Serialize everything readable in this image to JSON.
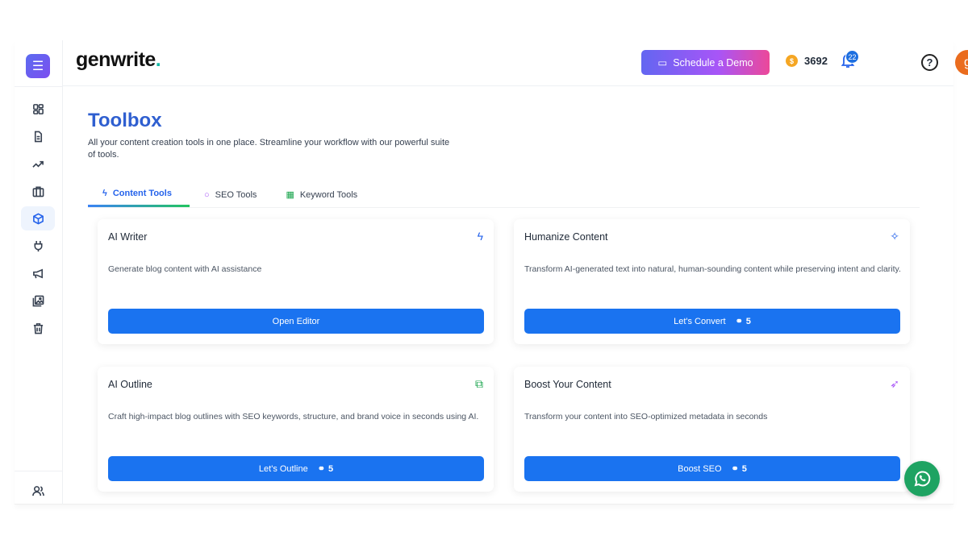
{
  "sidebar": {
    "items": [
      {
        "icon": "dashboard-icon"
      },
      {
        "icon": "document-icon"
      },
      {
        "icon": "trending-icon"
      },
      {
        "icon": "briefcase-icon"
      },
      {
        "icon": "box-icon",
        "active": true
      },
      {
        "icon": "plug-icon"
      },
      {
        "icon": "megaphone-icon"
      },
      {
        "icon": "image-icon"
      },
      {
        "icon": "trash-icon"
      }
    ],
    "bottom_icon": "users-icon"
  },
  "header": {
    "logo": "genwrite",
    "logo_dot": ".",
    "demo_label": "Schedule a Demo",
    "credits": "3692",
    "notifications": "22",
    "avatar_letter": "g"
  },
  "page": {
    "title": "Toolbox",
    "subtitle": "All your content creation tools in one place. Streamline your workflow with our powerful suite of tools."
  },
  "tabs": [
    {
      "label": "Content Tools",
      "icon": "lightning-icon"
    },
    {
      "label": "SEO Tools",
      "icon": "search-icon"
    },
    {
      "label": "Keyword Tools",
      "icon": "keyboard-icon"
    }
  ],
  "cards": [
    {
      "title": "AI Writer",
      "description": "Generate blog content with AI assistance",
      "button": "Open Editor",
      "cost": "",
      "icon": "lightning-icon",
      "icon_color": "#2563eb"
    },
    {
      "title": "Humanize Content",
      "description": "Transform AI-generated text into natural, human-sounding content while preserving intent and clarity.",
      "button": "Let's Convert",
      "cost": "5",
      "icon": "magic-wand-icon",
      "icon_color": "#2563eb"
    },
    {
      "title": "AI Outline",
      "description": "Craft high-impact blog outlines with SEO keywords, structure, and brand voice in seconds using AI.",
      "button": "Let's Outline",
      "cost": "5",
      "icon": "workflow-icon",
      "icon_color": "#16a34a"
    },
    {
      "title": "Boost Your Content",
      "description": "Transform your content into SEO-optimized metadata in seconds",
      "button": "Boost SEO",
      "cost": "5",
      "icon": "rocket-icon",
      "icon_color": "#a855f7"
    }
  ],
  "colors": {
    "accent": "#1a73f0",
    "title": "#2f5fd0",
    "whatsapp": "#1ea362"
  }
}
